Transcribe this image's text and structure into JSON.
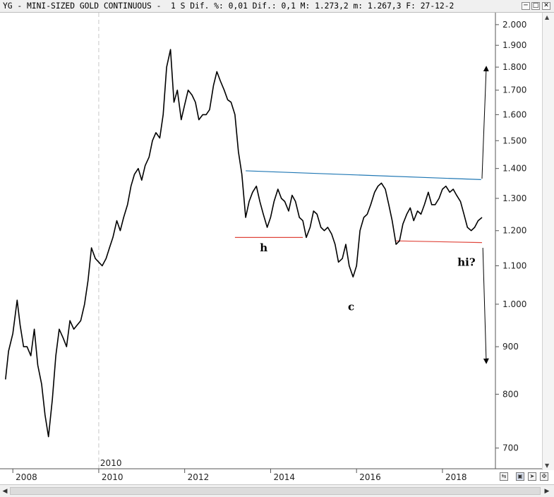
{
  "window": {
    "title": "YG - MINI-SIZED GOLD CONTINUOUS -  1 S Dif. %: 0,01 Dif.: 0,1 M: 1.273,2 m: 1.267,3 F: 27-12-2",
    "minimize_label": "─",
    "maximize_label": "□",
    "close_label": "✕"
  },
  "colors": {
    "price_line": "#000000",
    "neckline": "#1f77b4",
    "support": "#e0463c",
    "grid": "#c8c8c8",
    "axis": "#555555"
  },
  "chart_data": {
    "type": "line",
    "title": "",
    "xlabel": "",
    "ylabel": "",
    "y_scale": "log",
    "ylim": [
      665,
      2060
    ],
    "xlim": [
      2007.8,
      2019.2
    ],
    "grid": true,
    "x_ticks": [
      2008,
      2010,
      2012,
      2014,
      2016,
      2018
    ],
    "x_tick_labels": [
      "2008",
      "2010",
      "2012",
      "2014",
      "2016",
      "2018"
    ],
    "x_top_label": "2010",
    "y_ticks": [
      700,
      800,
      900,
      1000,
      1100,
      1200,
      1300,
      1400,
      1500,
      1600,
      1700,
      1800,
      1900,
      2000
    ],
    "y_tick_labels": [
      "700",
      "800",
      "900",
      "1.000",
      "1.100",
      "1.200",
      "1.300",
      "1.400",
      "1.500",
      "1.600",
      "1.700",
      "1.800",
      "1.900",
      "2.000"
    ],
    "series": [
      {
        "x": [
          2007.83,
          2007.9,
          2008.0,
          2008.1,
          2008.17,
          2008.25,
          2008.33,
          2008.42,
          2008.5,
          2008.58,
          2008.67,
          2008.75,
          2008.83,
          2008.92,
          2009.0,
          2009.08,
          2009.17,
          2009.25,
          2009.33,
          2009.42,
          2009.5,
          2009.58,
          2009.67,
          2009.75,
          2009.83,
          2009.92,
          2010.0,
          2010.08,
          2010.17,
          2010.25,
          2010.33,
          2010.42,
          2010.5,
          2010.58,
          2010.67,
          2010.75,
          2010.83,
          2010.92,
          2011.0,
          2011.08,
          2011.17,
          2011.25,
          2011.33,
          2011.42,
          2011.5,
          2011.58,
          2011.67,
          2011.75,
          2011.83,
          2011.92,
          2012.0,
          2012.08,
          2012.17,
          2012.25,
          2012.33,
          2012.42,
          2012.5,
          2012.58,
          2012.67,
          2012.75,
          2012.83,
          2012.92,
          2013.0,
          2013.08,
          2013.17,
          2013.25,
          2013.33,
          2013.42,
          2013.5,
          2013.58,
          2013.67,
          2013.75,
          2013.83,
          2013.92,
          2014.0,
          2014.08,
          2014.17,
          2014.25,
          2014.33,
          2014.42,
          2014.5,
          2014.58,
          2014.67,
          2014.75,
          2014.83,
          2014.92,
          2015.0,
          2015.08,
          2015.17,
          2015.25,
          2015.33,
          2015.42,
          2015.5,
          2015.58,
          2015.67,
          2015.75,
          2015.83,
          2015.92,
          2016.0,
          2016.08,
          2016.17,
          2016.25,
          2016.33,
          2016.42,
          2016.5,
          2016.58,
          2016.67,
          2016.75,
          2016.83,
          2016.92,
          2017.0,
          2017.08,
          2017.17,
          2017.25,
          2017.33,
          2017.42,
          2017.5,
          2017.58,
          2017.67,
          2017.75,
          2017.83,
          2017.92,
          2018.0,
          2018.08,
          2018.17,
          2018.25,
          2018.33,
          2018.42,
          2018.5,
          2018.58,
          2018.67,
          2018.75,
          2018.83,
          2018.92
        ],
        "values": [
          830,
          890,
          930,
          1010,
          950,
          900,
          900,
          880,
          940,
          860,
          820,
          760,
          720,
          790,
          880,
          940,
          920,
          900,
          960,
          940,
          950,
          960,
          1000,
          1060,
          1150,
          1120,
          1110,
          1100,
          1120,
          1150,
          1180,
          1230,
          1200,
          1240,
          1280,
          1340,
          1380,
          1400,
          1360,
          1410,
          1440,
          1500,
          1530,
          1510,
          1600,
          1800,
          1880,
          1650,
          1700,
          1580,
          1640,
          1700,
          1680,
          1650,
          1580,
          1600,
          1600,
          1620,
          1720,
          1780,
          1740,
          1700,
          1660,
          1650,
          1600,
          1460,
          1380,
          1240,
          1290,
          1320,
          1340,
          1290,
          1250,
          1210,
          1240,
          1290,
          1330,
          1300,
          1290,
          1260,
          1310,
          1290,
          1240,
          1230,
          1180,
          1210,
          1260,
          1250,
          1210,
          1200,
          1210,
          1190,
          1160,
          1110,
          1120,
          1160,
          1100,
          1070,
          1100,
          1200,
          1240,
          1250,
          1280,
          1320,
          1340,
          1350,
          1330,
          1280,
          1230,
          1160,
          1170,
          1220,
          1250,
          1270,
          1230,
          1260,
          1250,
          1280,
          1320,
          1280,
          1280,
          1300,
          1330,
          1340,
          1320,
          1330,
          1310,
          1290,
          1250,
          1210,
          1200,
          1210,
          1230,
          1240
        ]
      }
    ],
    "trendlines": [
      {
        "x": [
          2013.42,
          2018.9
        ],
        "y": [
          1392,
          1362
        ]
      },
      {
        "x": [
          2013.17,
          2014.75
        ],
        "y": [
          1180,
          1180
        ]
      },
      {
        "x": [
          2016.92,
          2018.92
        ],
        "y": [
          1170,
          1165
        ]
      }
    ],
    "arrows": [
      {
        "x": [
          2018.92,
          2019.02
        ],
        "y": [
          1365,
          1800
        ]
      },
      {
        "x": [
          2018.94,
          2019.02
        ],
        "y": [
          1150,
          865
        ]
      }
    ],
    "annotations": [
      {
        "text": "h",
        "x": 2013.75,
        "y": 1140
      },
      {
        "text": "c",
        "x": 2015.8,
        "y": 985
      },
      {
        "text": "hi?",
        "x": 2018.35,
        "y": 1100
      }
    ]
  }
}
